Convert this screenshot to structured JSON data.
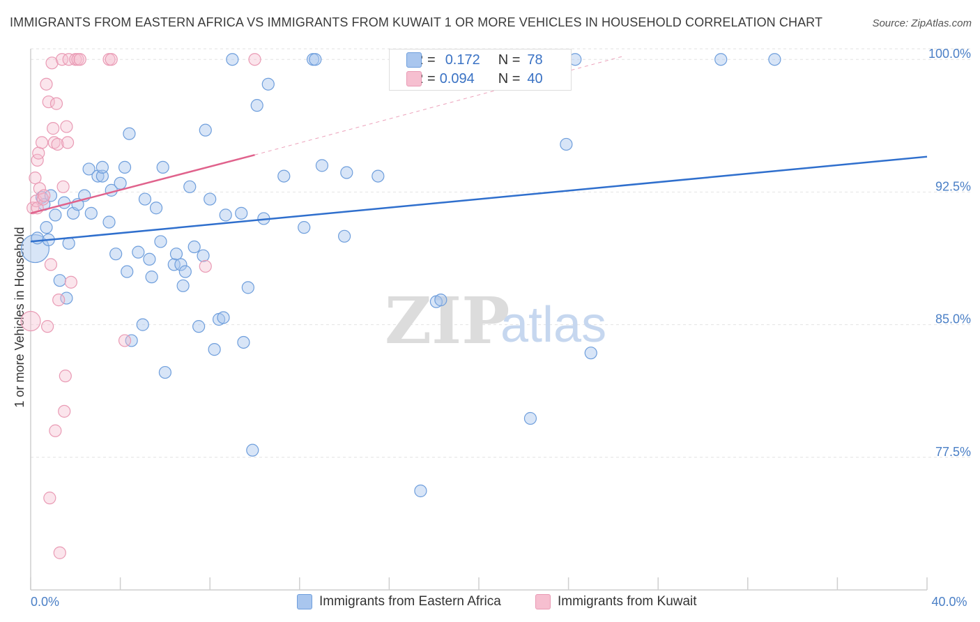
{
  "title": "IMMIGRANTS FROM EASTERN AFRICA VS IMMIGRANTS FROM KUWAIT 1 OR MORE VEHICLES IN HOUSEHOLD CORRELATION CHART",
  "source": "Source: ZipAtlas.com",
  "watermark": {
    "zip": "ZIP",
    "atlas": "atlas"
  },
  "legend": {
    "rows": [
      {
        "r_label": "R =",
        "r_value": "0.172",
        "n_label": "N =",
        "n_value": "78"
      },
      {
        "r_label": "R =",
        "r_value": "0.094",
        "n_label": "N =",
        "n_value": "40"
      }
    ]
  },
  "colors": {
    "blue_fill": "#a9c6ee",
    "blue_stroke": "#6e9edc",
    "blue_line": "#2f6fcd",
    "pink_fill": "#f6bfd0",
    "pink_stroke": "#e99ab4",
    "pink_line": "#e0628c",
    "grid": "#e2e2e2",
    "tick_text": "#4a7fc6"
  },
  "chart_data": {
    "type": "scatter",
    "title": "IMMIGRANTS FROM EASTERN AFRICA VS IMMIGRANTS FROM KUWAIT 1 OR MORE VEHICLES IN HOUSEHOLD CORRELATION CHART",
    "xlabel": "",
    "ylabel": "1 or more Vehicles in Household",
    "xlim": [
      0,
      40
    ],
    "ylim": [
      70.0,
      100.6
    ],
    "x_ticks": [
      0,
      40
    ],
    "x_tick_labels": [
      "0.0%",
      "40.0%"
    ],
    "y_ticks": [
      77.5,
      85.0,
      92.5,
      100.0
    ],
    "y_tick_labels": [
      "77.5%",
      "85.0%",
      "92.5%",
      "100.0%"
    ],
    "grid": true,
    "legend_position": "top-center",
    "series": [
      {
        "name": "Immigrants from Eastern Africa",
        "color": "#a9c6ee",
        "R": 0.172,
        "N": 78,
        "trend": {
          "x": [
            0,
            40
          ],
          "y": [
            89.7,
            94.5
          ],
          "style": "solid"
        },
        "points": [
          [
            0.2,
            89.3
          ],
          [
            0.3,
            89.9
          ],
          [
            0.5,
            92.2
          ],
          [
            0.6,
            91.8
          ],
          [
            0.7,
            90.5
          ],
          [
            0.8,
            89.8
          ],
          [
            0.9,
            92.3
          ],
          [
            1.1,
            91.2
          ],
          [
            1.3,
            87.5
          ],
          [
            1.5,
            91.9
          ],
          [
            1.6,
            86.5
          ],
          [
            1.7,
            89.6
          ],
          [
            1.9,
            91.3
          ],
          [
            2.1,
            91.8
          ],
          [
            2.4,
            92.3
          ],
          [
            2.6,
            93.8
          ],
          [
            2.7,
            91.3
          ],
          [
            3.0,
            93.4
          ],
          [
            3.2,
            93.4
          ],
          [
            3.2,
            93.9
          ],
          [
            3.5,
            90.8
          ],
          [
            3.6,
            92.6
          ],
          [
            3.8,
            89.0
          ],
          [
            4.0,
            93.0
          ],
          [
            4.2,
            93.9
          ],
          [
            4.3,
            88.0
          ],
          [
            4.4,
            95.8
          ],
          [
            4.5,
            84.1
          ],
          [
            4.8,
            89.1
          ],
          [
            5.0,
            85.0
          ],
          [
            5.1,
            92.1
          ],
          [
            5.3,
            88.7
          ],
          [
            5.4,
            87.7
          ],
          [
            5.6,
            91.6
          ],
          [
            5.8,
            89.7
          ],
          [
            5.9,
            93.9
          ],
          [
            6.0,
            82.3
          ],
          [
            6.4,
            88.4
          ],
          [
            6.5,
            89.0
          ],
          [
            6.7,
            88.4
          ],
          [
            6.8,
            87.2
          ],
          [
            6.9,
            88.0
          ],
          [
            7.1,
            92.8
          ],
          [
            7.3,
            89.4
          ],
          [
            7.5,
            84.9
          ],
          [
            7.7,
            88.9
          ],
          [
            7.8,
            96.0
          ],
          [
            8.0,
            92.1
          ],
          [
            8.2,
            83.6
          ],
          [
            8.4,
            85.3
          ],
          [
            8.6,
            85.4
          ],
          [
            8.7,
            91.2
          ],
          [
            9.0,
            100.0
          ],
          [
            9.4,
            91.3
          ],
          [
            9.5,
            84.0
          ],
          [
            9.7,
            87.1
          ],
          [
            9.9,
            77.9
          ],
          [
            10.1,
            97.4
          ],
          [
            10.4,
            91.0
          ],
          [
            10.6,
            98.6
          ],
          [
            11.3,
            93.4
          ],
          [
            12.2,
            90.5
          ],
          [
            12.6,
            100.0
          ],
          [
            12.7,
            100.0
          ],
          [
            13.0,
            94.0
          ],
          [
            14.0,
            90.0
          ],
          [
            14.1,
            93.6
          ],
          [
            15.5,
            93.4
          ],
          [
            17.4,
            75.6
          ],
          [
            18.1,
            86.3
          ],
          [
            18.3,
            86.4
          ],
          [
            22.3,
            79.7
          ],
          [
            23.3,
            100.0
          ],
          [
            23.9,
            95.2
          ],
          [
            24.3,
            100.0
          ],
          [
            25.0,
            83.4
          ],
          [
            30.8,
            100.0
          ],
          [
            33.2,
            100.0
          ]
        ]
      },
      {
        "name": "Immigrants from Kuwait",
        "color": "#f6bfd0",
        "R": 0.094,
        "N": 40,
        "trend": {
          "x": [
            0,
            10.0
          ],
          "y": [
            91.3,
            94.6
          ],
          "style": "solid",
          "extended": {
            "x": [
              10.0,
              26.5
            ],
            "y": [
              94.6,
              100.2
            ],
            "style": "dashed"
          }
        },
        "points": [
          [
            0.0,
            85.2
          ],
          [
            0.1,
            91.6
          ],
          [
            0.2,
            93.3
          ],
          [
            0.25,
            92.0
          ],
          [
            0.3,
            94.3
          ],
          [
            0.3,
            91.6
          ],
          [
            0.35,
            94.7
          ],
          [
            0.4,
            92.7
          ],
          [
            0.5,
            95.3
          ],
          [
            0.55,
            92.1
          ],
          [
            0.6,
            92.3
          ],
          [
            0.7,
            98.6
          ],
          [
            0.75,
            84.9
          ],
          [
            0.8,
            97.6
          ],
          [
            0.85,
            75.2
          ],
          [
            0.9,
            88.4
          ],
          [
            0.95,
            99.8
          ],
          [
            1.0,
            96.1
          ],
          [
            1.05,
            95.3
          ],
          [
            1.1,
            79.0
          ],
          [
            1.15,
            97.5
          ],
          [
            1.2,
            95.2
          ],
          [
            1.25,
            86.4
          ],
          [
            1.3,
            72.1
          ],
          [
            1.4,
            100.0
          ],
          [
            1.45,
            92.8
          ],
          [
            1.5,
            80.1
          ],
          [
            1.55,
            82.1
          ],
          [
            1.6,
            96.2
          ],
          [
            1.65,
            95.3
          ],
          [
            1.7,
            100.0
          ],
          [
            1.8,
            87.4
          ],
          [
            2.0,
            100.0
          ],
          [
            2.1,
            100.0
          ],
          [
            2.2,
            100.0
          ],
          [
            3.5,
            100.0
          ],
          [
            3.6,
            100.0
          ],
          [
            4.2,
            84.1
          ],
          [
            7.8,
            88.3
          ],
          [
            10.0,
            100.0
          ]
        ]
      }
    ]
  },
  "bottom_legend": [
    {
      "label": "Immigrants from Eastern Africa"
    },
    {
      "label": "Immigrants from Kuwait"
    }
  ]
}
